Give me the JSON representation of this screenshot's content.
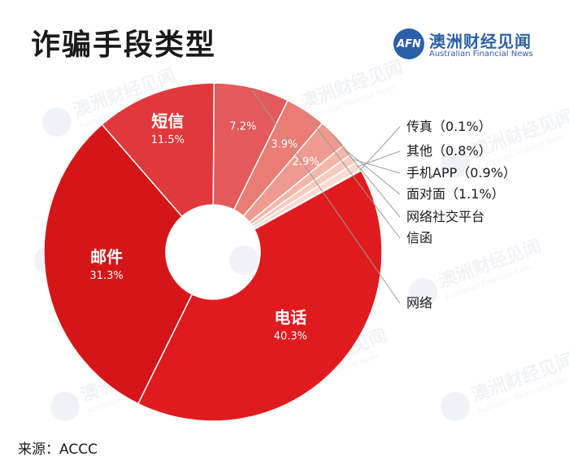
{
  "title": "诈骗手段类型",
  "logo": {
    "mark": "AFN",
    "name_cn": "澳洲财经见闻",
    "name_en": "Australian Financial News"
  },
  "watermark": {
    "text_cn": "澳洲财经见闻",
    "text_en": "Australian Financial News"
  },
  "source": "来源：ACCC",
  "chart_data": {
    "type": "pie",
    "subtype": "donut",
    "categories": [
      "电话",
      "邮件",
      "短信",
      "网络",
      "信函",
      "网络社交平台",
      "面对面",
      "手机APP",
      "其他",
      "传真"
    ],
    "values": [
      40.3,
      31.3,
      11.5,
      7.2,
      3.9,
      2.9,
      1.1,
      0.9,
      0.8,
      0.1
    ],
    "slice_labels": [
      {
        "name": "电话",
        "value": "40.3%"
      },
      {
        "name": "邮件",
        "value": "31.3%"
      },
      {
        "name": "短信",
        "value": "11.5%"
      },
      {
        "name": "",
        "value": "7.2%"
      },
      {
        "name": "",
        "value": "3.9%"
      },
      {
        "name": "",
        "value": "2.9%"
      },
      {
        "name": "",
        "value": ""
      },
      {
        "name": "",
        "value": ""
      },
      {
        "name": "",
        "value": ""
      },
      {
        "name": "",
        "value": ""
      }
    ],
    "callouts": [
      {
        "slice": 9,
        "text": "传真（0.1%）"
      },
      {
        "slice": 8,
        "text": "其他（0.8%）"
      },
      {
        "slice": 7,
        "text": "手机APP（0.9%）"
      },
      {
        "slice": 6,
        "text": "面对面（1.1%）"
      },
      {
        "slice": 5,
        "text": "网络社交平台"
      },
      {
        "slice": 4,
        "text": "信函"
      },
      {
        "slice": 3,
        "text": "网络"
      }
    ],
    "colors": [
      "#e01b1e",
      "#d51517",
      "#e0383b",
      "#e4595a",
      "#ea7c74",
      "#ef9a8f",
      "#f3b6a9",
      "#f6cbbf",
      "#f8dad1",
      "#fbe9e3"
    ]
  }
}
